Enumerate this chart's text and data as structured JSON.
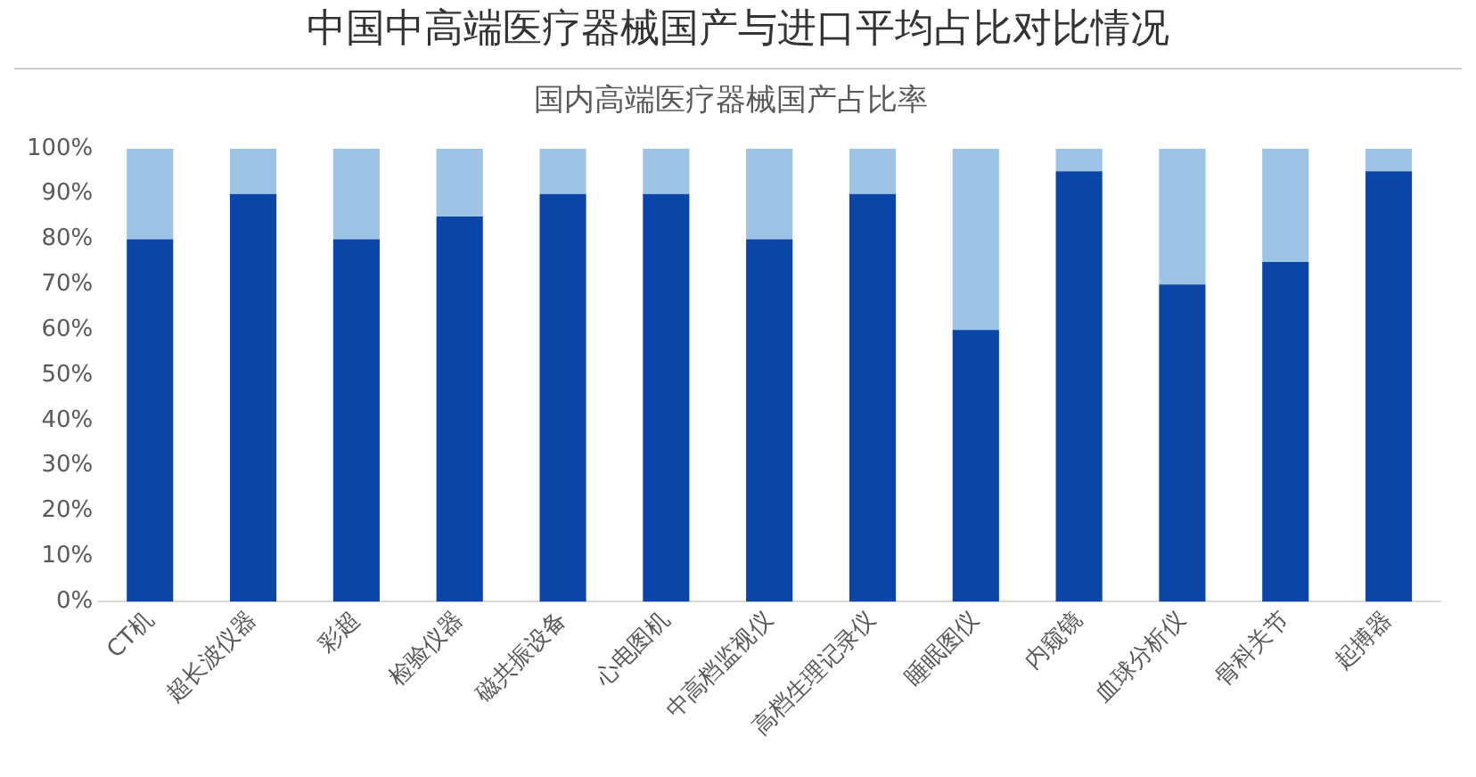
{
  "chart_data": {
    "type": "bar",
    "title": "中国中高端医疗器械国产与进口平均占比对比情况",
    "subtitle": "国内高端医疗器械国产占比率",
    "categories": [
      "CT机",
      "超长波仪器",
      "彩超",
      "检验仪器",
      "磁共振设备",
      "心电图机",
      "中高档监视仪",
      "高档生理记录仪",
      "睡眠图仪",
      "内窥镜",
      "血球分析仪",
      "骨科关节",
      "起搏器"
    ],
    "series": [
      {
        "color": "#0a45a8",
        "values": [
          80,
          90,
          80,
          85,
          90,
          90,
          80,
          90,
          60,
          95,
          70,
          75,
          95
        ]
      },
      {
        "color": "#9dc3e6",
        "values": [
          20,
          10,
          20,
          15,
          10,
          10,
          20,
          10,
          40,
          5,
          30,
          25,
          5
        ]
      }
    ],
    "stacked": true,
    "ylim": [
      0,
      100
    ],
    "yticks": [
      {
        "value": 0,
        "label": "0%"
      },
      {
        "value": 10,
        "label": "10%"
      },
      {
        "value": 20,
        "label": "20%"
      },
      {
        "value": 30,
        "label": "30%"
      },
      {
        "value": 40,
        "label": "40%"
      },
      {
        "value": 50,
        "label": "50%"
      },
      {
        "value": 60,
        "label": "60%"
      },
      {
        "value": 70,
        "label": "70%"
      },
      {
        "value": 80,
        "label": "80%"
      },
      {
        "value": 90,
        "label": "90%"
      },
      {
        "value": 100,
        "label": "100%"
      }
    ],
    "grid": false,
    "legend": false
  }
}
